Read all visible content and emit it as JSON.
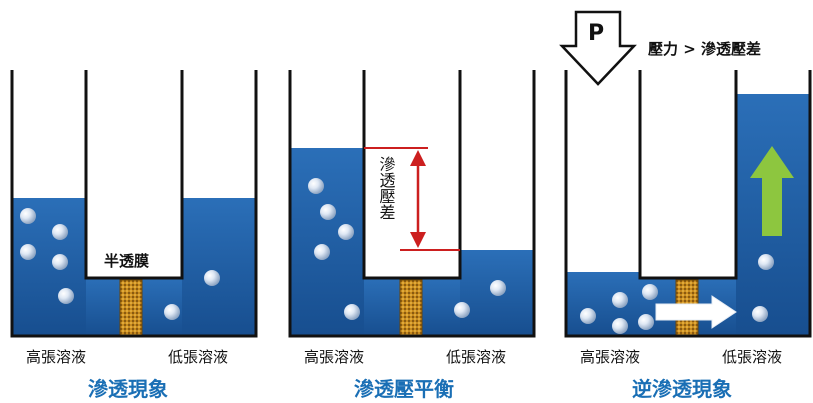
{
  "colors": {
    "water": "#1f5fa8",
    "water_dark": "#174e8f",
    "wall": "#111111",
    "membrane": "#c78a1e",
    "title": "#1a6fb5",
    "arrow_red": "#cc1f1f",
    "arrow_green": "#8dc63f"
  },
  "panels": [
    {
      "title": "滲透現象",
      "left_label": "高張溶液",
      "right_label": "低張溶液",
      "membrane_label": "半透膜"
    },
    {
      "title": "滲透壓平衡",
      "left_label": "高張溶液",
      "right_label": "低張溶液",
      "pressure_label": "滲透壓差"
    },
    {
      "title": "逆滲透現象",
      "left_label": "高張溶液",
      "right_label": "低張溶液",
      "p_label": "P",
      "pressure_note": "壓力 > 滲透壓差"
    }
  ],
  "icons": {
    "molecule": "bubble-icon",
    "piston": "p-arrow-icon",
    "flow": "right-arrow-icon",
    "rise": "up-arrow-icon",
    "dimension": "double-arrow-icon"
  }
}
